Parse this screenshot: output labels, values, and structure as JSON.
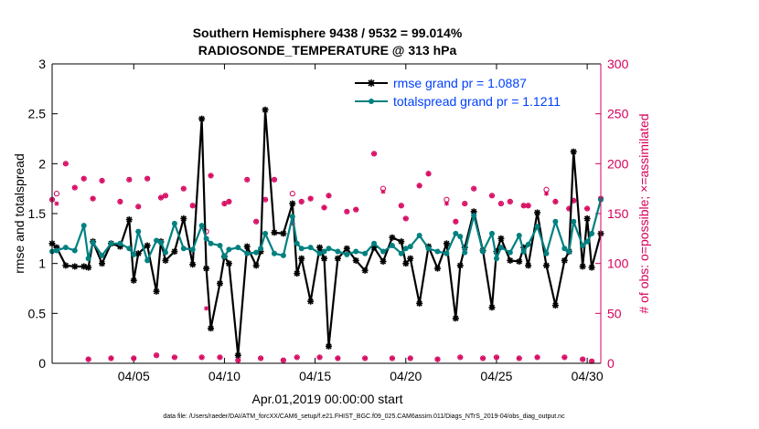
{
  "chart_data": {
    "type": "line",
    "title_lines": [
      "Southern Hemisphere 9438 / 9532 = 99.014%",
      "RADIOSONDE_TEMPERATURE @ 313 hPa"
    ],
    "xlabel": "Apr.01,2019 00:00:00 start",
    "ylabel_left": "rmse and totalspread",
    "ylabel_right": "# of obs: o=possible; ×=assimilated",
    "footer": "data file: /Users/raeder/DAI/ATM_forcXX/CAM6_setup/f.e21.FHIST_BGC.f09_025.CAM6assim.011/Diags_NTrS_2019-04/obs_diag_output.nc",
    "xlim": [
      0.5,
      30.75
    ],
    "ylim_left": [
      0,
      3
    ],
    "ylim_right": [
      0,
      300
    ],
    "x_ticks": [
      5,
      10,
      15,
      20,
      25,
      30
    ],
    "x_tick_labels": [
      "04/05",
      "04/10",
      "04/15",
      "04/20",
      "04/25",
      "04/30"
    ],
    "y_ticks_left": [
      0,
      0.5,
      1,
      1.5,
      2,
      2.5,
      3
    ],
    "y_tick_labels_left": [
      "0",
      "0.5",
      "1",
      "1.5",
      "2",
      "2.5",
      "3"
    ],
    "y_ticks_right": [
      0,
      50,
      100,
      150,
      200,
      250,
      300
    ],
    "y_tick_labels_right": [
      "0",
      "50",
      "100",
      "150",
      "200",
      "250",
      "300"
    ],
    "legend": {
      "position": "top-right",
      "entries": [
        "rmse grand pr = 1.0887",
        "totalspread grand pr = 1.1211"
      ]
    },
    "colors": {
      "rmse": "#000000",
      "totalspread": "#008080",
      "obs": "#d6005c",
      "legend_text": "#0040ff",
      "right_axis": "#d6005c"
    },
    "series": [
      {
        "name": "rmse",
        "x": [
          0.5,
          0.75,
          1.25,
          1.75,
          2.25,
          2.5,
          2.75,
          3.25,
          3.75,
          4.25,
          4.75,
          5.0,
          5.25,
          5.75,
          6.25,
          6.5,
          6.75,
          7.25,
          7.75,
          8.25,
          8.75,
          9.0,
          9.25,
          9.75,
          10.0,
          10.25,
          10.75,
          11.25,
          11.75,
          12.0,
          12.25,
          12.75,
          13.25,
          13.75,
          14.0,
          14.25,
          14.75,
          15.25,
          15.5,
          15.75,
          16.25,
          16.75,
          17.25,
          17.75,
          18.25,
          18.75,
          19.25,
          19.75,
          20.0,
          20.25,
          20.75,
          21.25,
          21.75,
          22.25,
          22.75,
          23.0,
          23.25,
          23.75,
          24.25,
          24.75,
          25.0,
          25.25,
          25.75,
          26.25,
          26.5,
          26.75,
          27.25,
          27.75,
          28.25,
          28.75,
          29.0,
          29.25,
          29.75,
          30.0,
          30.25,
          30.75
        ],
        "y": [
          1.2,
          1.16,
          0.98,
          0.97,
          0.97,
          0.96,
          1.22,
          1.0,
          1.2,
          1.17,
          1.44,
          0.83,
          1.1,
          1.18,
          0.72,
          1.22,
          1.03,
          1.12,
          1.45,
          0.99,
          2.45,
          0.95,
          0.35,
          0.8,
          1.07,
          1.0,
          0.08,
          1.17,
          0.98,
          1.12,
          2.54,
          1.31,
          1.3,
          1.6,
          0.9,
          1.05,
          0.62,
          1.16,
          1.05,
          0.17,
          1.05,
          1.15,
          1.03,
          0.93,
          1.16,
          1.02,
          1.26,
          1.22,
          1.0,
          1.05,
          0.6,
          1.17,
          0.95,
          1.2,
          0.45,
          0.98,
          1.16,
          1.52,
          1.13,
          0.56,
          1.12,
          1.25,
          1.03,
          1.02,
          1.16,
          0.98,
          1.51,
          0.98,
          0.58,
          1.03,
          1.12,
          2.12,
          0.97,
          1.45,
          0.96,
          1.3
        ],
        "marker": "asterisk"
      },
      {
        "name": "totalspread",
        "x": [
          0.5,
          0.75,
          1.25,
          1.75,
          2.25,
          2.5,
          2.75,
          3.25,
          3.75,
          4.25,
          4.75,
          5.0,
          5.25,
          5.75,
          6.25,
          6.5,
          6.75,
          7.25,
          7.75,
          8.25,
          8.75,
          9.0,
          9.25,
          9.75,
          10.0,
          10.25,
          10.75,
          11.25,
          11.75,
          12.0,
          12.25,
          12.75,
          13.25,
          13.75,
          14.0,
          14.25,
          14.75,
          15.25,
          15.5,
          15.75,
          16.25,
          16.75,
          17.25,
          17.75,
          18.25,
          18.75,
          19.25,
          19.75,
          20.0,
          20.25,
          20.75,
          21.25,
          21.75,
          22.25,
          22.75,
          23.0,
          23.25,
          23.75,
          24.25,
          24.75,
          25.0,
          25.25,
          25.75,
          26.25,
          26.5,
          26.75,
          27.25,
          27.75,
          28.25,
          28.75,
          29.0,
          29.25,
          29.75,
          30.0,
          30.25,
          30.75
        ],
        "y": [
          1.12,
          1.13,
          1.16,
          1.13,
          1.38,
          1.05,
          1.21,
          1.08,
          1.2,
          1.2,
          1.15,
          1.09,
          1.32,
          1.03,
          1.23,
          1.21,
          1.11,
          1.4,
          1.15,
          1.14,
          1.38,
          1.25,
          1.2,
          1.18,
          1.07,
          1.14,
          1.16,
          1.1,
          1.11,
          1.15,
          1.3,
          1.1,
          1.08,
          1.47,
          1.2,
          1.15,
          1.16,
          1.1,
          1.12,
          1.15,
          1.12,
          1.09,
          1.12,
          1.1,
          1.2,
          1.12,
          1.18,
          1.1,
          1.15,
          1.17,
          1.28,
          1.15,
          1.12,
          1.1,
          1.3,
          1.27,
          1.11,
          1.48,
          1.12,
          1.3,
          1.05,
          1.16,
          1.11,
          1.28,
          1.12,
          1.19,
          1.37,
          1.1,
          1.42,
          1.15,
          1.12,
          1.42,
          1.18,
          1.22,
          1.3,
          1.64
        ],
        "marker": "circle"
      }
    ],
    "obs_possible": {
      "x": [
        0.5,
        0.75,
        1.25,
        1.75,
        2.25,
        2.5,
        2.75,
        3.25,
        3.75,
        4.25,
        4.75,
        5.0,
        5.25,
        5.75,
        6.25,
        6.5,
        6.75,
        7.25,
        7.75,
        8.25,
        8.75,
        9.0,
        9.25,
        9.75,
        10.0,
        10.25,
        10.75,
        11.25,
        11.75,
        12.0,
        12.25,
        12.75,
        13.25,
        13.75,
        14.0,
        14.25,
        14.75,
        15.25,
        15.5,
        15.75,
        16.25,
        16.75,
        17.25,
        17.75,
        18.25,
        18.75,
        19.25,
        19.75,
        20.0,
        20.25,
        20.75,
        21.25,
        21.75,
        22.25,
        22.75,
        23.0,
        23.25,
        23.75,
        24.25,
        24.75,
        25.0,
        25.25,
        25.75,
        26.25,
        26.5,
        26.75,
        27.25,
        27.75,
        28.25,
        28.75,
        29.0,
        29.25,
        29.75,
        30.0,
        30.25,
        30.75
      ],
      "y": [
        164,
        170,
        200,
        176,
        185,
        4,
        165,
        183,
        5,
        162,
        184,
        5,
        157,
        185,
        8,
        166,
        168,
        6,
        175,
        158,
        6,
        132,
        188,
        6,
        160,
        162,
        3,
        184,
        142,
        5,
        164,
        184,
        3,
        170,
        6,
        162,
        165,
        6,
        156,
        168,
        5,
        152,
        154,
        5,
        210,
        175,
        5,
        158,
        145,
        5,
        178,
        190,
        4,
        164,
        142,
        6,
        160,
        175,
        5,
        168,
        6,
        160,
        162,
        5,
        158,
        158,
        6,
        174,
        162,
        6,
        155,
        163,
        4,
        155,
        2,
        165
      ]
    },
    "obs_assimilated": {
      "x": [
        0.5,
        0.75,
        1.25,
        1.75,
        2.25,
        2.5,
        2.75,
        3.25,
        3.75,
        4.25,
        4.75,
        5.0,
        5.25,
        5.75,
        6.25,
        6.5,
        6.75,
        7.25,
        7.75,
        8.25,
        8.75,
        9.0,
        9.25,
        9.75,
        10.0,
        10.25,
        10.75,
        11.25,
        11.75,
        12.0,
        12.25,
        12.75,
        13.25,
        13.75,
        14.0,
        14.25,
        14.75,
        15.25,
        15.5,
        15.75,
        16.25,
        16.75,
        17.25,
        17.75,
        18.25,
        18.75,
        19.25,
        19.75,
        20.0,
        20.25,
        20.75,
        21.25,
        21.75,
        22.25,
        22.75,
        23.0,
        23.25,
        23.75,
        24.25,
        24.75,
        25.0,
        25.25,
        25.75,
        26.25,
        26.5,
        26.75,
        27.25,
        27.75,
        28.25,
        28.75,
        29.0,
        29.25,
        29.75,
        30.0,
        30.25,
        30.75
      ],
      "y": [
        164,
        160,
        200,
        176,
        185,
        4,
        165,
        183,
        5,
        162,
        184,
        5,
        157,
        185,
        8,
        166,
        168,
        6,
        175,
        158,
        6,
        55,
        188,
        6,
        160,
        162,
        3,
        184,
        142,
        5,
        164,
        184,
        3,
        140,
        6,
        162,
        165,
        6,
        156,
        168,
        5,
        152,
        154,
        5,
        210,
        172,
        5,
        158,
        145,
        5,
        178,
        190,
        4,
        160,
        142,
        6,
        160,
        175,
        5,
        168,
        6,
        160,
        162,
        5,
        158,
        158,
        6,
        170,
        162,
        6,
        155,
        163,
        4,
        155,
        2,
        165
      ]
    }
  }
}
